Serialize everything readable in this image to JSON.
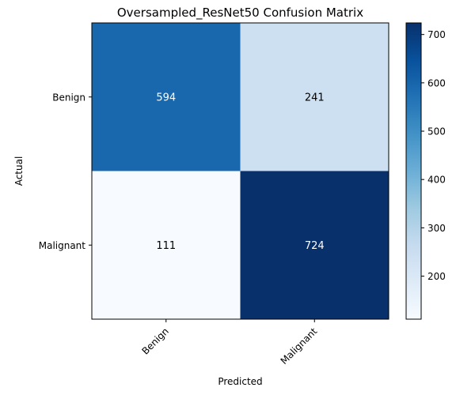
{
  "chart_data": {
    "type": "heatmap",
    "title": "Oversampled_ResNet50 Confusion Matrix",
    "xlabel": "Predicted",
    "ylabel": "Actual",
    "x_categories": [
      "Benign",
      "Malignant"
    ],
    "y_categories": [
      "Benign",
      "Malignant"
    ],
    "values": [
      [
        594,
        241
      ],
      [
        111,
        724
      ]
    ],
    "colormap": "Blues",
    "color_range": [
      111,
      724
    ],
    "colorbar_ticks": [
      200,
      300,
      400,
      500,
      600,
      700
    ],
    "colorbar_position": "right",
    "grid": false
  }
}
